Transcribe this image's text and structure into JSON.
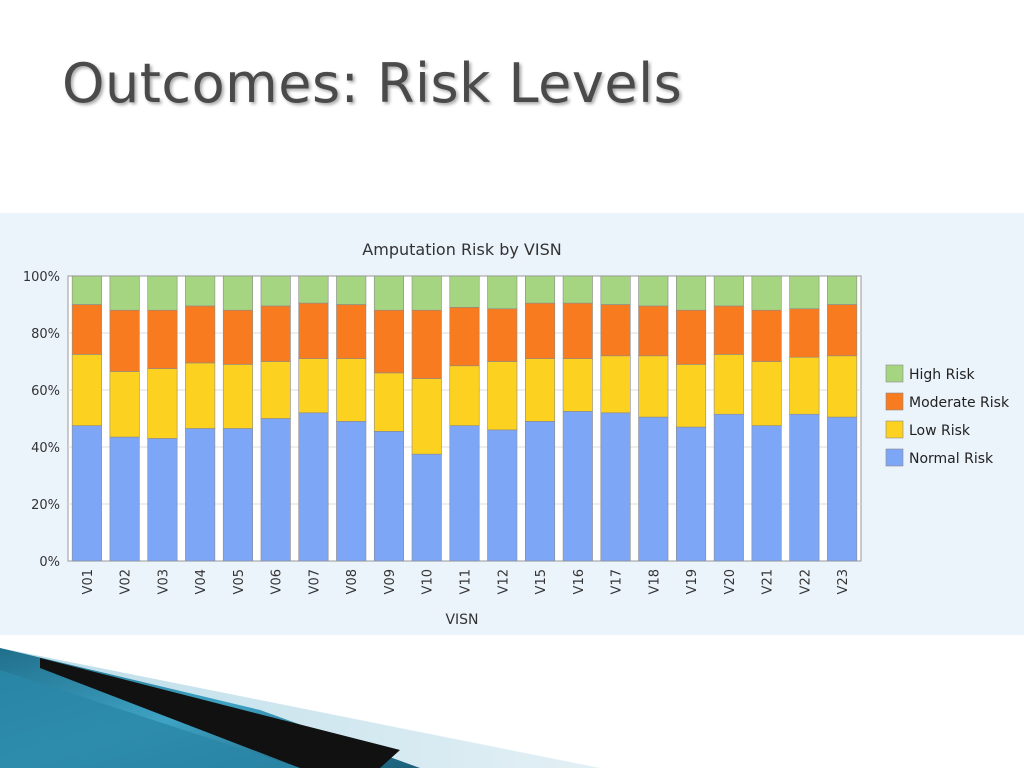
{
  "slide": {
    "title": "Outcomes: Risk Levels"
  },
  "chart_data": {
    "type": "bar",
    "stacked": true,
    "title": "Amputation Risk by VISN",
    "xlabel": "VISN",
    "ylabel": "",
    "ylim": [
      0,
      100
    ],
    "y_ticks": [
      "0%",
      "20%",
      "40%",
      "60%",
      "80%",
      "100%"
    ],
    "grid": true,
    "legend_position": "right",
    "categories": [
      "V01",
      "V02",
      "V03",
      "V04",
      "V05",
      "V06",
      "V07",
      "V08",
      "V09",
      "V10",
      "V11",
      "V12",
      "V15",
      "V16",
      "V17",
      "V18",
      "V19",
      "V20",
      "V21",
      "V22",
      "V23"
    ],
    "series": [
      {
        "name": "Normal Risk",
        "color": "#7ea6f7",
        "values": [
          47.5,
          43.5,
          43,
          46.5,
          46.5,
          50,
          52,
          49,
          45.5,
          37.5,
          47.5,
          46,
          49,
          52.5,
          52,
          50.5,
          47,
          51.5,
          47.5,
          51.5,
          50.5
        ]
      },
      {
        "name": "Low Risk",
        "color": "#fdd11f",
        "values": [
          25,
          23,
          24.5,
          23,
          22.5,
          20,
          19,
          22,
          20.5,
          26.5,
          21,
          24,
          22,
          18.5,
          20,
          21.5,
          22,
          21,
          22.5,
          20,
          21.5
        ]
      },
      {
        "name": "Moderate Risk",
        "color": "#f97b1f",
        "values": [
          17.5,
          21.5,
          20.5,
          20,
          19,
          19.5,
          19.5,
          19,
          22,
          24,
          20.5,
          18.5,
          19.5,
          19.5,
          18,
          17.5,
          19,
          17,
          18,
          17,
          18
        ]
      },
      {
        "name": "High Risk",
        "color": "#a6d581",
        "values": [
          10,
          12,
          12,
          10.5,
          12,
          10.5,
          9.5,
          10,
          12,
          12,
          11,
          11.5,
          9.5,
          9.5,
          10,
          10.5,
          12,
          10.5,
          12,
          11.5,
          10
        ]
      }
    ],
    "legend_order": [
      "High Risk",
      "Moderate Risk",
      "Low Risk",
      "Normal Risk"
    ]
  }
}
